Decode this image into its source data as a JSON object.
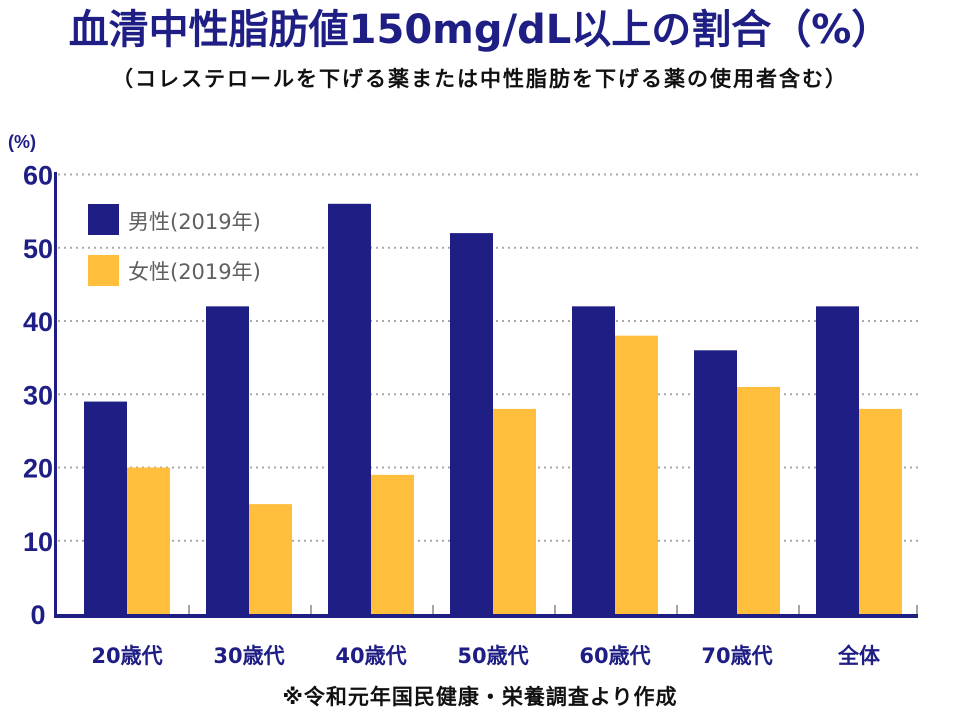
{
  "chart_data": {
    "type": "bar",
    "title": "血清中性脂肪値150mg/dL以上の割合（%）",
    "subtitle": "（コレステロールを下げる薬または中性脂肪を下げる薬の使用者含む）",
    "ylabel": "(%)",
    "xlabel": "",
    "ylim": [
      0,
      60
    ],
    "yticks": [
      0,
      10,
      20,
      30,
      40,
      50,
      60
    ],
    "grid": true,
    "legend_position": "top-left",
    "categories": [
      "20歳代",
      "30歳代",
      "40歳代",
      "50歳代",
      "60歳代",
      "70歳代",
      "全体"
    ],
    "series": [
      {
        "name": "男性(2019年)",
        "color": "#1e1e85",
        "values": [
          29,
          42,
          56,
          52,
          42,
          36,
          42
        ]
      },
      {
        "name": "女性(2019年)",
        "color": "#ffbe3c",
        "values": [
          20,
          15,
          19,
          28,
          38,
          31,
          28
        ]
      }
    ],
    "source_note": "※令和元年国民健康・栄養調査より作成"
  }
}
